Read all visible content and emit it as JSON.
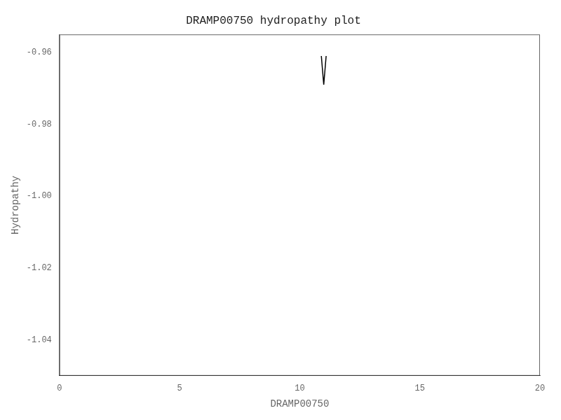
{
  "chart_data": {
    "type": "line",
    "title": "DRAMP00750 hydropathy plot",
    "xlabel": "DRAMP00750",
    "ylabel": "Hydropathy",
    "x": [
      10.9,
      11.0,
      11.1
    ],
    "values": [
      -0.961,
      -0.969,
      -0.961
    ],
    "color": "#000000",
    "xlim": [
      0,
      20
    ],
    "ylim": [
      -1.05,
      -0.955
    ],
    "xticks": [
      0,
      5,
      10,
      15,
      20
    ],
    "yticks": [
      -1.04,
      -1.02,
      {
        "value": -1.0,
        "label": "-1.00"
      },
      -0.98,
      -0.96
    ],
    "grid": false
  }
}
